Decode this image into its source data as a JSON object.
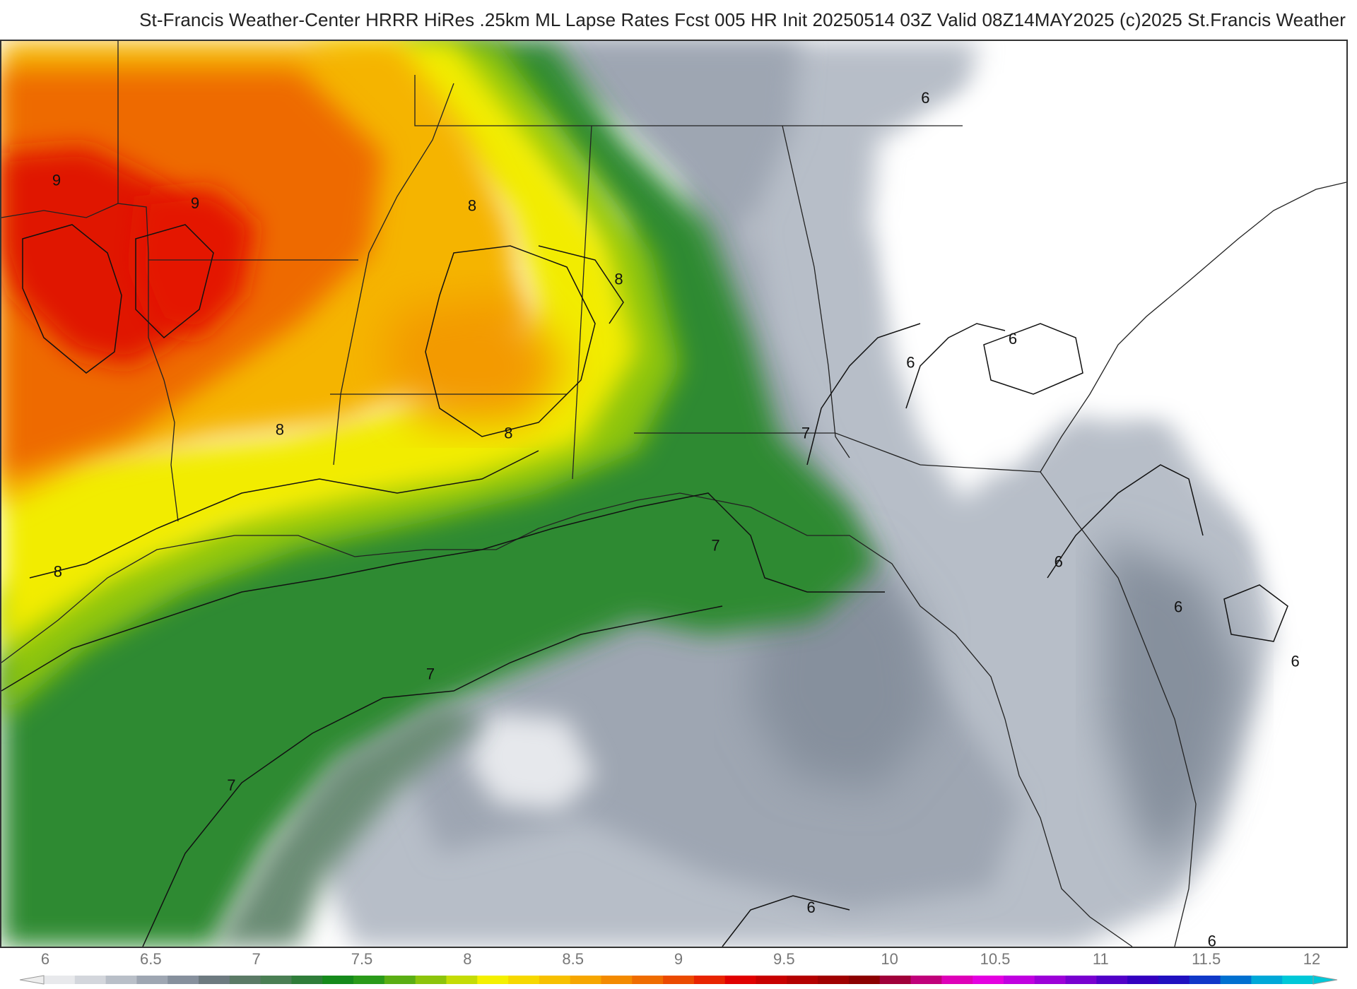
{
  "header": {
    "title": "St-Francis Weather-Center HRRR HiRes .25km ML Lapse Rates  Fcst 005 HR Init 20250514 03Z  Valid 08Z14MAY2025    (c)2025 St.Francis Weather"
  },
  "legend": {
    "ticks": [
      "6",
      "6.5",
      "7",
      "7.5",
      "8",
      "8.5",
      "9",
      "9.5",
      "10",
      "10.5",
      "11",
      "11.5",
      "12"
    ],
    "colors": [
      "#e8e9ec",
      "#d3d6dc",
      "#b9bfc8",
      "#9ea6b2",
      "#86909d",
      "#6d7a80",
      "#5b7a66",
      "#4a7f54",
      "#2f7d3a",
      "#158a1c",
      "#2a9a1a",
      "#5aae14",
      "#8cc40c",
      "#c4dc06",
      "#f4f000",
      "#f6d800",
      "#f7c000",
      "#f6a600",
      "#f38a00",
      "#ef6c00",
      "#eb4a00",
      "#e82400",
      "#e00000",
      "#c80000",
      "#b40000",
      "#a00000",
      "#8c0000",
      "#a0003a",
      "#c0007a",
      "#de00b8",
      "#e400e0",
      "#c000e0",
      "#9c00d8",
      "#7800d0",
      "#5200c8",
      "#3400c0",
      "#2010c0",
      "#1038c8",
      "#0070d0",
      "#00a8d8",
      "#00c8d8"
    ]
  },
  "map": {
    "contour_labels": [
      {
        "text": "9",
        "a": 0.041,
        "b": 0.155
      },
      {
        "text": "9",
        "a": 0.144,
        "b": 0.18
      },
      {
        "text": "8",
        "a": 0.35,
        "b": 0.183
      },
      {
        "text": "8",
        "a": 0.459,
        "b": 0.264
      },
      {
        "text": "8",
        "a": 0.207,
        "b": 0.43
      },
      {
        "text": "8",
        "a": 0.377,
        "b": 0.434
      },
      {
        "text": "8",
        "a": 0.042,
        "b": 0.587
      },
      {
        "text": "7",
        "a": 0.598,
        "b": 0.434
      },
      {
        "text": "7",
        "a": 0.531,
        "b": 0.558
      },
      {
        "text": "7",
        "a": 0.319,
        "b": 0.7
      },
      {
        "text": "7",
        "a": 0.171,
        "b": 0.823
      },
      {
        "text": "6",
        "a": 0.687,
        "b": 0.064
      },
      {
        "text": "6",
        "a": 0.676,
        "b": 0.356
      },
      {
        "text": "6",
        "a": 0.752,
        "b": 0.33
      },
      {
        "text": "6",
        "a": 0.786,
        "b": 0.576
      },
      {
        "text": "6",
        "a": 0.875,
        "b": 0.626
      },
      {
        "text": "6",
        "a": 0.962,
        "b": 0.686
      },
      {
        "text": "6",
        "a": 0.602,
        "b": 0.958
      },
      {
        "text": "6",
        "a": 0.9,
        "b": 0.995
      }
    ]
  }
}
